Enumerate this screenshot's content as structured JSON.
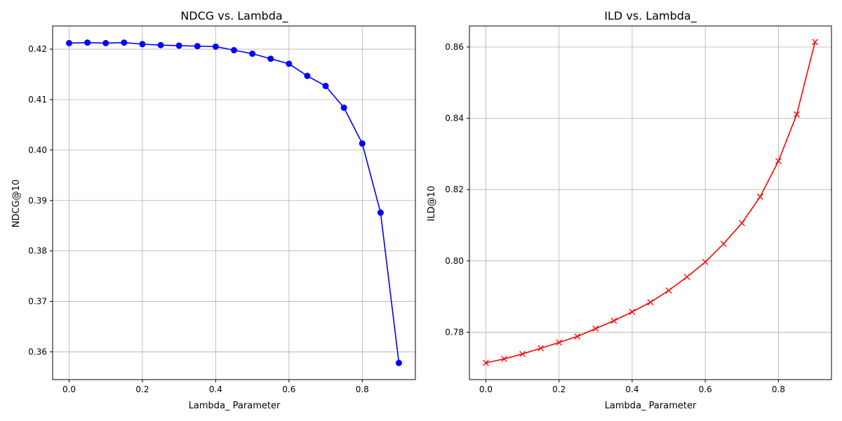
{
  "chart_data": [
    {
      "type": "line",
      "title": "NDCG vs. Lambda_",
      "xlabel": "Lambda_ Parameter",
      "ylabel": "NDCG@10",
      "xlim": [
        -0.045,
        0.945
      ],
      "ylim": [
        0.3545,
        0.4246
      ],
      "xticks": [
        0.0,
        0.2,
        0.4,
        0.6,
        0.8
      ],
      "xtick_labels": [
        "0.0",
        "0.2",
        "0.4",
        "0.6",
        "0.8"
      ],
      "yticks": [
        0.36,
        0.37,
        0.38,
        0.39,
        0.4,
        0.41,
        0.42
      ],
      "ytick_labels": [
        "0.36",
        "0.37",
        "0.38",
        "0.39",
        "0.40",
        "0.41",
        "0.42"
      ],
      "grid": true,
      "marker": "circle",
      "color": "#0000ff",
      "x": [
        0.0,
        0.05,
        0.1,
        0.15,
        0.2,
        0.25,
        0.3,
        0.35,
        0.4,
        0.45,
        0.5,
        0.55,
        0.6,
        0.65,
        0.7,
        0.75,
        0.8,
        0.85,
        0.9
      ],
      "y": [
        0.4212,
        0.4213,
        0.4212,
        0.4213,
        0.421,
        0.4208,
        0.4207,
        0.4206,
        0.4205,
        0.4198,
        0.4191,
        0.4181,
        0.4171,
        0.4147,
        0.4127,
        0.4084,
        0.4013,
        0.3876,
        0.3578
      ]
    },
    {
      "type": "line",
      "title": "ILD vs. Lambda_",
      "xlabel": "Lambda_ Parameter",
      "ylabel": "ILD@10",
      "xlim": [
        -0.045,
        0.945
      ],
      "ylim": [
        0.7667,
        0.8659
      ],
      "xticks": [
        0.0,
        0.2,
        0.4,
        0.6,
        0.8
      ],
      "xtick_labels": [
        "0.0",
        "0.2",
        "0.4",
        "0.6",
        "0.8"
      ],
      "yticks": [
        0.78,
        0.8,
        0.82,
        0.84,
        0.86
      ],
      "ytick_labels": [
        "0.78",
        "0.80",
        "0.82",
        "0.84",
        "0.86"
      ],
      "grid": true,
      "marker": "x",
      "color": "#ff0000",
      "x": [
        0.0,
        0.05,
        0.1,
        0.15,
        0.2,
        0.25,
        0.3,
        0.35,
        0.4,
        0.45,
        0.5,
        0.55,
        0.6,
        0.65,
        0.7,
        0.75,
        0.8,
        0.85,
        0.9
      ],
      "y": [
        0.7714,
        0.7725,
        0.7739,
        0.7755,
        0.7771,
        0.7788,
        0.781,
        0.7832,
        0.7857,
        0.7884,
        0.7917,
        0.7955,
        0.7997,
        0.8048,
        0.8106,
        0.818,
        0.828,
        0.8411,
        0.8614
      ]
    }
  ]
}
